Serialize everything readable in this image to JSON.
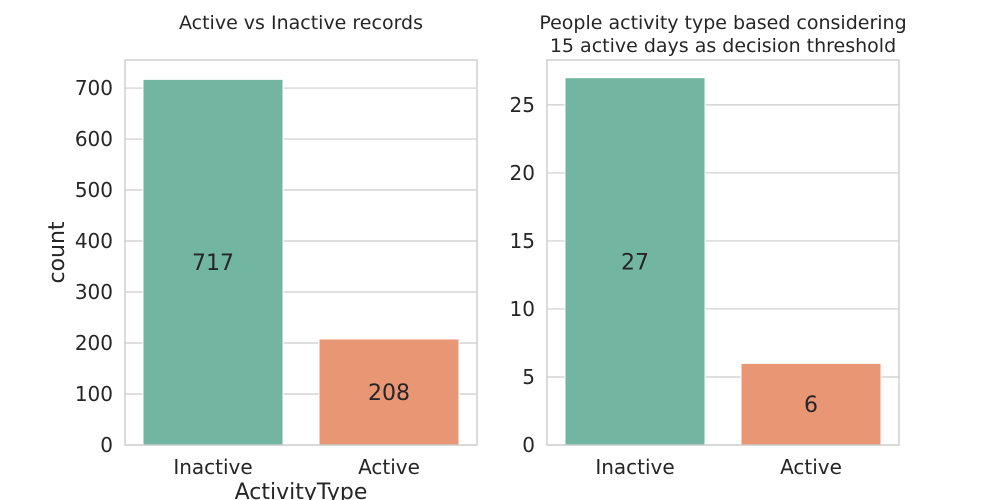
{
  "chart_data": [
    {
      "type": "bar",
      "title": "Active vs Inactive records",
      "xlabel": "ActivityType",
      "ylabel": "count",
      "categories": [
        "Inactive",
        "Active"
      ],
      "values": [
        717,
        208
      ],
      "data_labels": [
        "717",
        "208"
      ],
      "ylim": [
        0,
        755
      ],
      "yticks": [
        0,
        100,
        200,
        300,
        400,
        500,
        600,
        700
      ],
      "grid": true,
      "colors": [
        "#72b6a1",
        "#e99675"
      ]
    },
    {
      "type": "bar",
      "title": "People activity type based considering\n15 active days as decision threshold",
      "xlabel": "",
      "ylabel": "",
      "categories": [
        "Inactive",
        "Active"
      ],
      "values": [
        27,
        6
      ],
      "data_labels": [
        "27",
        "6"
      ],
      "ylim": [
        0,
        28.3
      ],
      "yticks": [
        0,
        5,
        10,
        15,
        20,
        25
      ],
      "grid": true,
      "colors": [
        "#72b6a1",
        "#e99675"
      ]
    }
  ]
}
